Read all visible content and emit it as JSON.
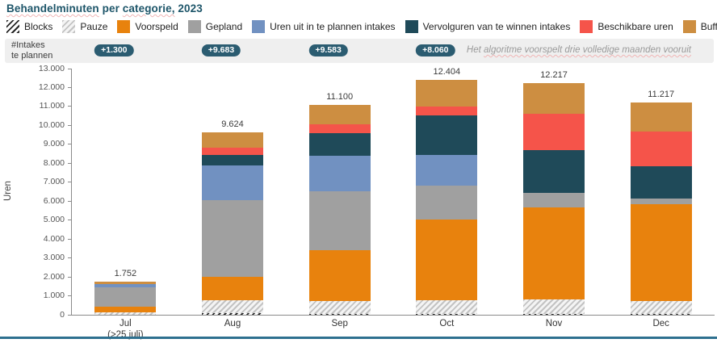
{
  "title": "Behandelminuten per categorie, 2023",
  "title_parts": [
    {
      "text": "Behandelminuten",
      "underline": true
    },
    {
      "text": " per ",
      "underline": false
    },
    {
      "text": "categorie,",
      "underline": true
    },
    {
      "text": " 2023",
      "underline": false
    }
  ],
  "colors": {
    "title": "#1d5569",
    "badge_bg": "#2b5c71",
    "bottom_line": "#2e708f",
    "axis": "#8a8a8a"
  },
  "legend": [
    {
      "id": "blocks",
      "label": "Blocks",
      "style": "hatch-dark"
    },
    {
      "id": "pauze",
      "label": "Pauze",
      "style": "hatch-light"
    },
    {
      "id": "voorspeld",
      "label": "Voorspeld",
      "style": "solid",
      "color": "#e8820d"
    },
    {
      "id": "gepland",
      "label": "Gepland",
      "style": "solid",
      "color": "#a0a0a0"
    },
    {
      "id": "uren_uit",
      "label": "Uren uit in te plannen intakes",
      "style": "solid",
      "color": "#7191c1"
    },
    {
      "id": "vervolguren",
      "label": "Vervolguren van te winnen intakes",
      "style": "solid",
      "color": "#1f4a59"
    },
    {
      "id": "beschikbaar",
      "label": "Beschikbare uren",
      "style": "solid",
      "color": "#f5544a"
    },
    {
      "id": "buffer",
      "label": "Buffer",
      "style": "solid",
      "color": "#cd8e41"
    }
  ],
  "intakes_row": {
    "label_line1": "#Intakes",
    "label_line2": "te plannen",
    "badges": [
      {
        "label": "+1.300",
        "month_index": 0
      },
      {
        "label": "+9.683",
        "month_index": 1
      },
      {
        "label": "+9.583",
        "month_index": 2
      },
      {
        "label": "+8.060",
        "month_index": 3
      }
    ],
    "note_parts": [
      {
        "text": "Het ",
        "underline": false
      },
      {
        "text": "algoritme voorspelt drie volledige maanden vooruit",
        "underline": true
      }
    ]
  },
  "chart_data": {
    "type": "bar",
    "stacked": true,
    "title": "Behandelminuten per categorie, 2023",
    "xlabel": "",
    "ylabel": "Uren",
    "ylim": [
      0,
      13000
    ],
    "ytick_step": 1000,
    "ytick_labels": [
      "0",
      "1.000",
      "2.000",
      "3.000",
      "4.000",
      "5.000",
      "6.000",
      "7.000",
      "8.000",
      "9.000",
      "10.000",
      "11.000",
      "12.000",
      "13.000"
    ],
    "grid": false,
    "legend_position": "top",
    "categories": [
      "Jul",
      "Aug",
      "Sep",
      "Oct",
      "Nov",
      "Dec"
    ],
    "category_sublabels": [
      "(>25 juli)",
      "",
      "",
      "",
      "",
      ""
    ],
    "totals": [
      1752,
      9624,
      11100,
      12404,
      12217,
      11217
    ],
    "total_labels": [
      "1.752",
      "9.624",
      "11.100",
      "12.404",
      "12.217",
      "11.217"
    ],
    "series": [
      {
        "name": "Blocks",
        "style": "hatch-dark",
        "values": [
          0,
          85,
          60,
          60,
          60,
          60
        ]
      },
      {
        "name": "Pauze",
        "style": "hatch-light",
        "values": [
          130,
          665,
          645,
          710,
          750,
          680
        ]
      },
      {
        "name": "Voorspeld",
        "style": "solid",
        "color": "#e8820d",
        "values": [
          310,
          1275,
          2715,
          4240,
          4845,
          5080
        ]
      },
      {
        "name": "Gepland",
        "style": "solid",
        "color": "#a0a0a0",
        "values": [
          1000,
          4035,
          3110,
          1805,
          795,
          315
        ]
      },
      {
        "name": "Uren uit in te plannen intakes",
        "style": "solid",
        "color": "#7191c1",
        "values": [
          190,
          1815,
          1855,
          1605,
          0,
          0
        ]
      },
      {
        "name": "Vervolguren van te winnen intakes",
        "style": "solid",
        "color": "#1f4a59",
        "values": [
          0,
          565,
          1200,
          2105,
          2230,
          1705
        ]
      },
      {
        "name": "Beschikbare uren",
        "style": "solid",
        "color": "#f5544a",
        "values": [
          0,
          400,
          470,
          455,
          1930,
          1845
        ]
      },
      {
        "name": "Buffer",
        "style": "solid",
        "color": "#cd8e41",
        "values": [
          122,
          784,
          1045,
          1424,
          1607,
          1532
        ]
      }
    ]
  }
}
